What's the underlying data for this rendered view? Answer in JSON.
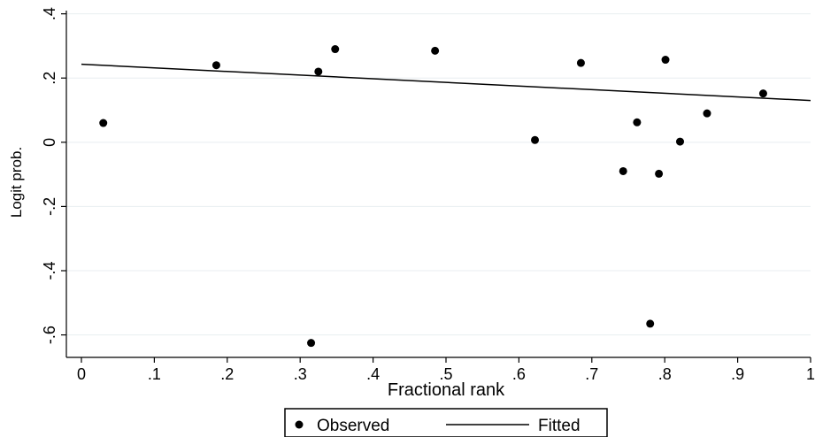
{
  "chart_data": {
    "type": "scatter",
    "xlabel": "Fractional rank",
    "ylabel": "Logit prob.",
    "xlim": [
      0,
      1
    ],
    "ylim": [
      -0.67,
      0.41
    ],
    "xticks": [
      0,
      0.1,
      0.2,
      0.3,
      0.4,
      0.5,
      0.6,
      0.7,
      0.8,
      0.9,
      1
    ],
    "xtick_labels": [
      "0",
      ".1",
      ".2",
      ".3",
      ".4",
      ".5",
      ".6",
      ".7",
      ".8",
      ".9",
      "1"
    ],
    "yticks": [
      -0.6,
      -0.4,
      -0.2,
      0,
      0.2,
      0.4
    ],
    "ytick_labels": [
      "-.6",
      "-.4",
      "-.2",
      "0",
      ".2",
      ".4"
    ],
    "grid": "horizontal",
    "legend_position": "bottom",
    "series": [
      {
        "name": "Observed",
        "kind": "scatter",
        "color": "#000000",
        "points": [
          {
            "x": 0.03,
            "y": 0.06
          },
          {
            "x": 0.185,
            "y": 0.24
          },
          {
            "x": 0.315,
            "y": -0.625
          },
          {
            "x": 0.325,
            "y": 0.22
          },
          {
            "x": 0.348,
            "y": 0.29
          },
          {
            "x": 0.485,
            "y": 0.285
          },
          {
            "x": 0.622,
            "y": 0.007
          },
          {
            "x": 0.685,
            "y": 0.247
          },
          {
            "x": 0.743,
            "y": -0.09
          },
          {
            "x": 0.762,
            "y": 0.062
          },
          {
            "x": 0.78,
            "y": -0.565
          },
          {
            "x": 0.792,
            "y": -0.098
          },
          {
            "x": 0.801,
            "y": 0.257
          },
          {
            "x": 0.821,
            "y": 0.002
          },
          {
            "x": 0.858,
            "y": 0.09
          },
          {
            "x": 0.935,
            "y": 0.152
          }
        ]
      },
      {
        "name": "Fitted",
        "kind": "line",
        "color": "#000000",
        "points": [
          {
            "x": 0,
            "y": 0.243
          },
          {
            "x": 1,
            "y": 0.13
          }
        ]
      }
    ]
  }
}
